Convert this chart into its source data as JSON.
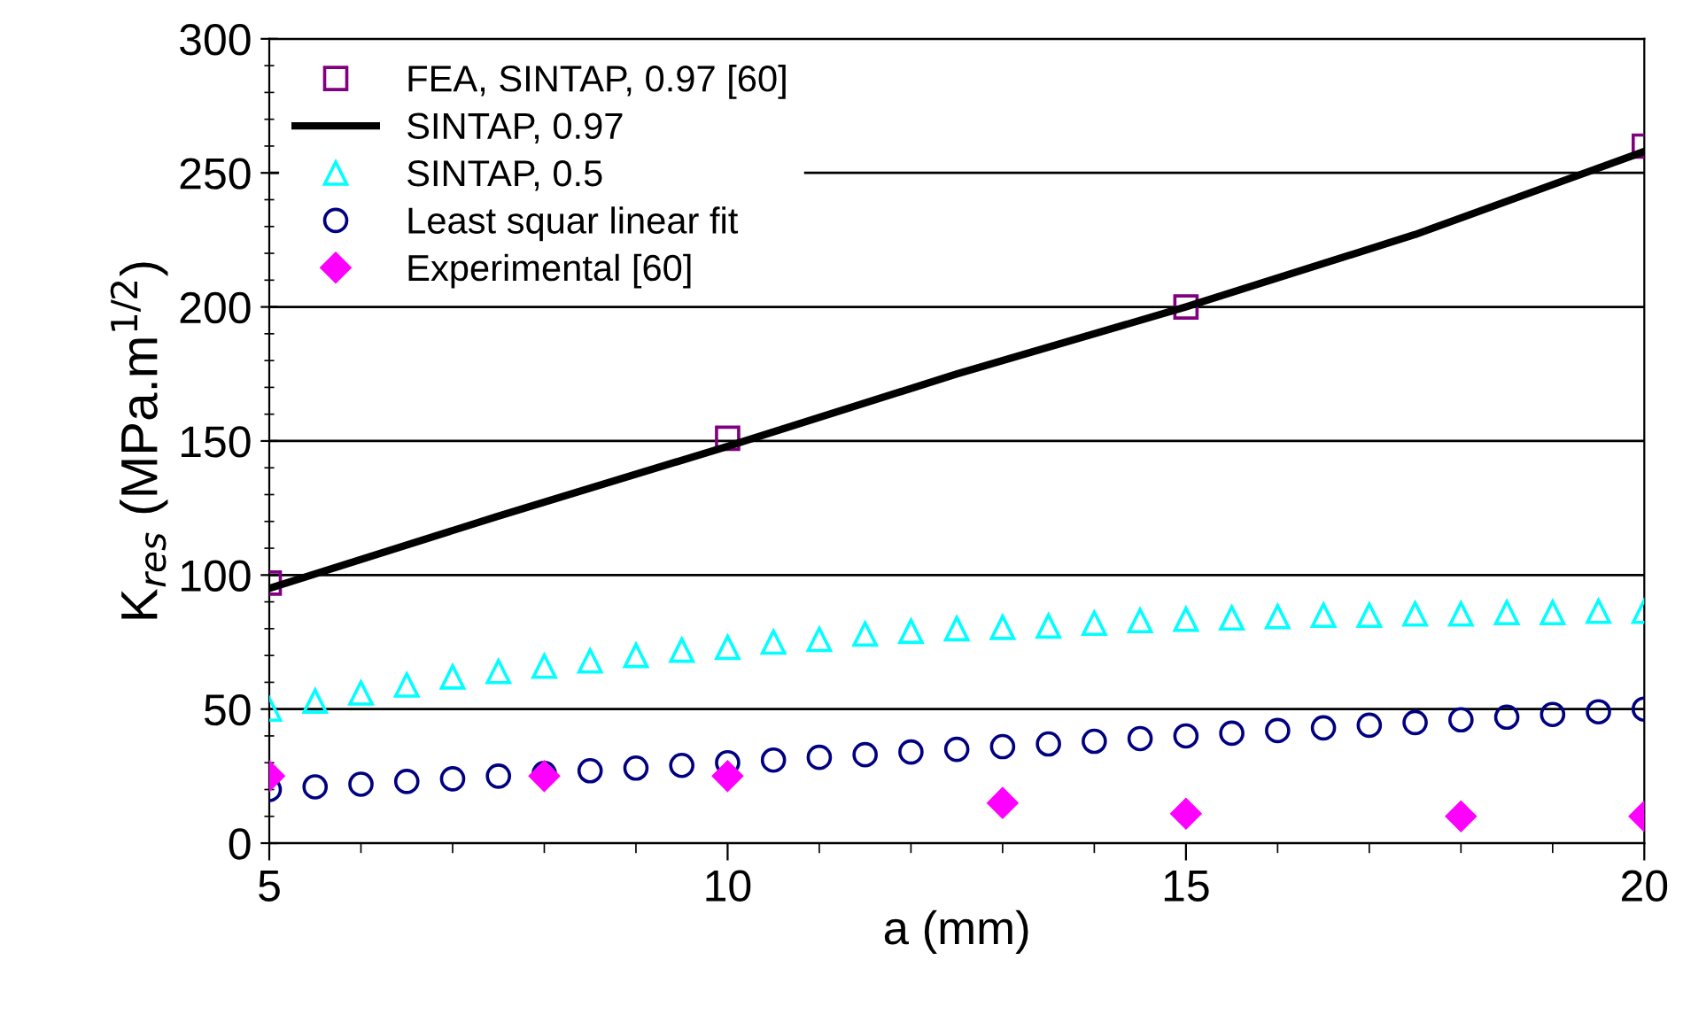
{
  "chart_data": {
    "type": "scatter",
    "xlabel": "a (mm)",
    "ylabel": "K$_{res}$ (MPa.m$^{1/2}$)",
    "xlim": [
      5,
      20
    ],
    "ylim": [
      0,
      300
    ],
    "xticks": [
      5,
      10,
      15,
      20
    ],
    "yticks": [
      0,
      50,
      100,
      150,
      200,
      250,
      300
    ],
    "grid": "y",
    "legend": "top left",
    "series": [
      {
        "name": "FEA, SINTAP, 0.97 [60]",
        "marker": "square",
        "color": "#800080",
        "x": [
          5,
          10,
          15,
          20
        ],
        "values": [
          97,
          151,
          200,
          260
        ]
      },
      {
        "name": "SINTAP, 0.97",
        "type": "line",
        "marker": "none",
        "line_style": "solid",
        "color": "#000000",
        "x": [
          5,
          7.5,
          10,
          12.5,
          15,
          17.5,
          20
        ],
        "values": [
          95,
          122,
          148,
          175,
          200,
          227,
          258
        ]
      },
      {
        "name": "SINTAP, 0.5",
        "marker": "triangle",
        "color": "#00ffff",
        "x": [
          5,
          5.5,
          6,
          6.5,
          7,
          7.5,
          8,
          8.5,
          9,
          9.5,
          10,
          10.5,
          11,
          11.5,
          12,
          12.5,
          13,
          13.5,
          14,
          14.5,
          15,
          15.5,
          16,
          16.5,
          17,
          17.5,
          18,
          18.5,
          19,
          19.5,
          20
        ],
        "values": [
          50,
          53,
          56,
          59,
          62,
          64,
          66,
          68,
          70,
          72,
          73,
          75,
          76,
          78,
          79,
          80,
          80.5,
          81,
          82,
          83,
          83.5,
          84,
          84.5,
          85,
          85,
          85.5,
          85.5,
          86,
          86,
          86.5,
          86.5
        ]
      },
      {
        "name": "Least squar linear fit",
        "marker": "circle",
        "color": "#000080",
        "x": [
          5,
          5.5,
          6,
          6.5,
          7,
          7.5,
          8,
          8.5,
          9,
          9.5,
          10,
          10.5,
          11,
          11.5,
          12,
          12.5,
          13,
          13.5,
          14,
          14.5,
          15,
          15.5,
          16,
          16.5,
          17,
          17.5,
          18,
          18.5,
          19,
          19.5,
          20
        ],
        "values": [
          20,
          21,
          22,
          23,
          24,
          25,
          26,
          27,
          28,
          29,
          30,
          31,
          32,
          33,
          34,
          35,
          36,
          37,
          38,
          39,
          40,
          41,
          42,
          43,
          44,
          45,
          46,
          47,
          48,
          49,
          50
        ]
      },
      {
        "name": "Experimental [60]",
        "marker": "diamond",
        "color": "#ff00ff",
        "x": [
          5,
          8,
          10,
          13,
          15,
          18,
          20
        ],
        "values": [
          25,
          25,
          25,
          15,
          11,
          10,
          10
        ]
      }
    ]
  }
}
